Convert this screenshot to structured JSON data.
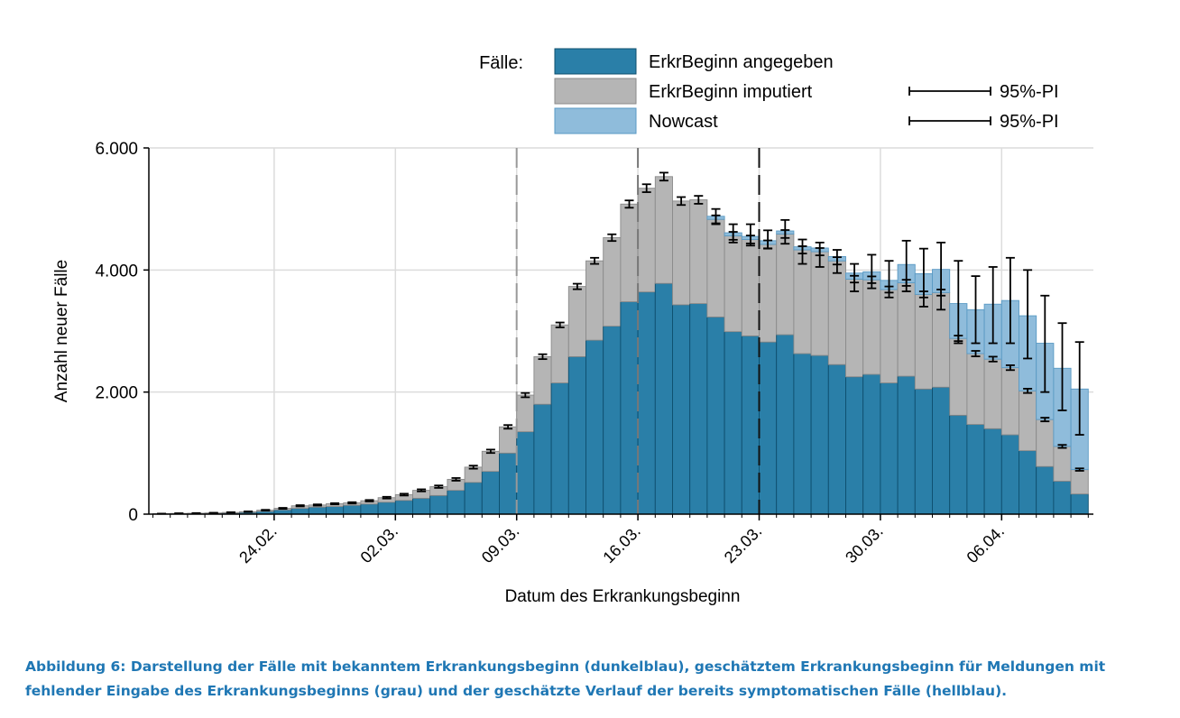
{
  "chart_data": {
    "type": "bar",
    "stacked": true,
    "xlabel": "Datum des Erkrankungsbeginn",
    "ylabel": "Anzahl neuer Fälle",
    "ylim": [
      0,
      6000
    ],
    "y_ticks": [
      {
        "value": 0,
        "label": "0"
      },
      {
        "value": 2000,
        "label": "2.000"
      },
      {
        "value": 4000,
        "label": "4.000"
      },
      {
        "value": 6000,
        "label": "6.000"
      }
    ],
    "x_ticks": [
      {
        "index": 7,
        "label": "24.02."
      },
      {
        "index": 14,
        "label": "02.03."
      },
      {
        "index": 21,
        "label": "09.03."
      },
      {
        "index": 28,
        "label": "16.03."
      },
      {
        "index": 35,
        "label": "23.03."
      },
      {
        "index": 42,
        "label": "30.03."
      },
      {
        "index": 49,
        "label": "06.04."
      }
    ],
    "first_date": "17.02.",
    "grid": true,
    "vlines": [
      {
        "index": 21,
        "style": "long-dash",
        "color": "#999999"
      },
      {
        "index": 28,
        "style": "long-dash",
        "color": "#777777"
      },
      {
        "index": 35,
        "style": "long-dash",
        "color": "#111111"
      }
    ],
    "legend": {
      "title": "Fälle:",
      "position": "top",
      "items": [
        {
          "label": "ErkrBeginn angegeben",
          "color": "#2a7fa8",
          "pi_label": ""
        },
        {
          "label": "ErkrBeginn imputiert",
          "color": "#b5b5b5",
          "pi_label": "95%-PI"
        },
        {
          "label": "Nowcast",
          "color": "#8fbcdb",
          "pi_label": "95%-PI"
        }
      ]
    },
    "series": [
      {
        "name": "ErkrBeginn angegeben",
        "color": "#2a7fa8",
        "values": [
          5,
          8,
          10,
          14,
          18,
          28,
          45,
          70,
          95,
          115,
          125,
          145,
          165,
          195,
          225,
          260,
          305,
          390,
          520,
          700,
          1000,
          1350,
          1800,
          2150,
          2580,
          2850,
          3080,
          3480,
          3640,
          3780,
          3430,
          3450,
          3230,
          2990,
          2920,
          2820,
          2940,
          2630,
          2600,
          2450,
          2250,
          2290,
          2150,
          2260,
          2050,
          2080,
          1620,
          1470,
          1400,
          1300,
          1040,
          780,
          540,
          330
        ]
      },
      {
        "name": "ErkrBeginn imputiert",
        "color": "#b5b5b5",
        "values": [
          2,
          4,
          5,
          6,
          10,
          12,
          20,
          25,
          42,
          35,
          45,
          40,
          55,
          75,
          95,
          130,
          145,
          180,
          250,
          330,
          430,
          600,
          780,
          950,
          1150,
          1300,
          1450,
          1600,
          1700,
          1750,
          1700,
          1700,
          1600,
          1570,
          1580,
          1600,
          1650,
          1700,
          1700,
          1700,
          1600,
          1550,
          1530,
          1530,
          1550,
          1550,
          1260,
          1160,
          1140,
          1100,
          980,
          770,
          570,
          400
        ]
      },
      {
        "name": "Nowcast",
        "color": "#8fbcdb",
        "values": [
          0,
          0,
          0,
          0,
          0,
          0,
          0,
          0,
          0,
          0,
          0,
          0,
          0,
          0,
          0,
          0,
          0,
          0,
          0,
          0,
          0,
          0,
          0,
          0,
          0,
          0,
          0,
          0,
          0,
          0,
          0,
          0,
          50,
          50,
          50,
          60,
          50,
          50,
          60,
          70,
          100,
          130,
          150,
          300,
          340,
          380,
          570,
          720,
          900,
          1100,
          1230,
          1250,
          1280,
          1320
        ]
      }
    ],
    "pi_observed": {
      "mid": [
        7,
        12,
        15,
        20,
        28,
        40,
        65,
        95,
        137,
        150,
        170,
        185,
        220,
        270,
        320,
        390,
        450,
        570,
        770,
        1030,
        1430,
        1950,
        2580,
        3100,
        3730,
        4150,
        4530,
        5080,
        5340,
        5530,
        5130,
        5150,
        4830,
        4560,
        4500,
        4420,
        4590,
        4330,
        4300,
        4150,
        3850,
        3840,
        3680,
        3790,
        3600,
        3630,
        2880,
        2630,
        2540,
        2400,
        2020,
        1550,
        1110,
        730
      ],
      "half": [
        2,
        3,
        3,
        3,
        4,
        5,
        6,
        8,
        10,
        10,
        10,
        11,
        12,
        14,
        15,
        17,
        20,
        22,
        25,
        28,
        30,
        35,
        40,
        40,
        45,
        50,
        55,
        60,
        65,
        65,
        65,
        65,
        65,
        65,
        65,
        65,
        65,
        60,
        60,
        60,
        55,
        55,
        50,
        50,
        50,
        50,
        45,
        45,
        40,
        40,
        35,
        30,
        25,
        20
      ]
    },
    "pi_nowcast": {
      "lo": [
        null,
        null,
        null,
        null,
        null,
        null,
        null,
        null,
        null,
        null,
        null,
        null,
        null,
        null,
        null,
        null,
        null,
        null,
        null,
        null,
        null,
        null,
        null,
        null,
        null,
        null,
        null,
        null,
        null,
        null,
        null,
        null,
        4750,
        4450,
        4400,
        4350,
        4430,
        4100,
        4050,
        3950,
        3650,
        3700,
        3550,
        3650,
        3400,
        3350,
        2800,
        2800,
        2800,
        2800,
        2550,
        2000,
        1700,
        1300
      ],
      "hi": [
        null,
        null,
        null,
        null,
        null,
        null,
        null,
        null,
        null,
        null,
        null,
        null,
        null,
        null,
        null,
        null,
        null,
        null,
        null,
        null,
        null,
        null,
        null,
        null,
        null,
        null,
        null,
        null,
        null,
        null,
        null,
        null,
        5000,
        4750,
        4750,
        4650,
        4820,
        4500,
        4450,
        4330,
        4100,
        4250,
        4150,
        4480,
        4350,
        4450,
        4150,
        3900,
        4050,
        4200,
        4000,
        3580,
        3130,
        2820
      ]
    }
  },
  "caption": {
    "line1": "Abbildung 6: Darstellung der Fälle mit bekanntem Erkrankungsbeginn (dunkelblau), geschätztem Erkrankungsbeginn für Meldungen mit",
    "line2": "fehlender Eingabe des Erkrankungsbeginns (grau) und der  geschätzte Verlauf der bereits symptomatischen Fälle (hellblau)."
  }
}
